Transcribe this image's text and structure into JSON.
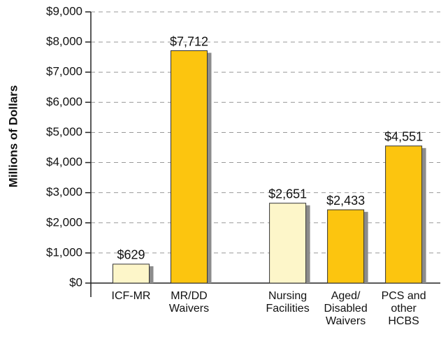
{
  "chart_data": {
    "type": "bar",
    "y_label": "Millions of Dollars",
    "categories": [
      "ICF-MR",
      "MR/DD\nWaivers",
      null,
      "Nursing\nFacilities",
      "Aged/\nDisabled\nWaivers",
      "PCS and\nother\nHCBS"
    ],
    "values": [
      629,
      7712,
      null,
      2651,
      2433,
      4551
    ],
    "value_labels": [
      "$629",
      "$7,712",
      null,
      "$2,651",
      "$2,433",
      "$4,551"
    ],
    "colors": [
      "#fdf6c9",
      "#fcc50f",
      null,
      "#fdf6c9",
      "#fcc50f",
      "#fcc50f"
    ],
    "ylim": [
      0,
      9000
    ],
    "yticks": [
      {
        "value": 0,
        "label": "$0"
      },
      {
        "value": 1000,
        "label": "$1,000"
      },
      {
        "value": 2000,
        "label": "$2,000"
      },
      {
        "value": 3000,
        "label": "$3,000"
      },
      {
        "value": 4000,
        "label": "$4,000"
      },
      {
        "value": 5000,
        "label": "$5,000"
      },
      {
        "value": 6000,
        "label": "$6,000"
      },
      {
        "value": 7000,
        "label": "$7,000"
      },
      {
        "value": 8000,
        "label": "$8,000"
      },
      {
        "value": 9000,
        "label": "$9,000"
      }
    ],
    "grid": true
  }
}
